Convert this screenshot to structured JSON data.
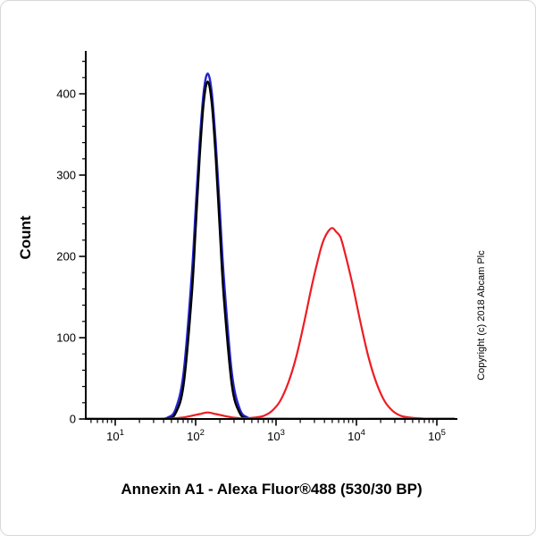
{
  "figure": {
    "title": "Annexin A1 - Alexa Fluor®488 (530/30 BP)",
    "y_axis_label": "Count",
    "copyright": "Copyright (c) 2018 Abcam Plc"
  },
  "chart_data": {
    "type": "line",
    "title": "Annexin A1 - Alexa Fluor®488 (530/30 BP)",
    "xlabel": "Annexin A1 - Alexa Fluor®488 (530/30 BP)",
    "ylabel": "Count",
    "x_scale": "log10",
    "x_ticks_exponents": [
      1,
      2,
      3,
      4,
      5
    ],
    "x_range_log10": [
      0.64,
      5.22
    ],
    "ylim": [
      0,
      450
    ],
    "y_major_ticks": [
      0,
      100,
      200,
      300,
      400
    ],
    "y_minor_tick_step": 20,
    "grid": false,
    "legend": null,
    "series": [
      {
        "name": "blue-histogram",
        "color": "#2323cc",
        "stroke_width": 2.4,
        "peak": {
          "log10x": 2.15,
          "count": 425
        },
        "points_log10x_count": [
          [
            0.64,
            0
          ],
          [
            1.4,
            0
          ],
          [
            1.55,
            0.1
          ],
          [
            1.65,
            1.7
          ],
          [
            1.75,
            12
          ],
          [
            1.85,
            57
          ],
          [
            1.95,
            175
          ],
          [
            2.0,
            258
          ],
          [
            2.05,
            340
          ],
          [
            2.1,
            402
          ],
          [
            2.15,
            425
          ],
          [
            2.2,
            402
          ],
          [
            2.25,
            340
          ],
          [
            2.3,
            258
          ],
          [
            2.35,
            175
          ],
          [
            2.45,
            57
          ],
          [
            2.55,
            12
          ],
          [
            2.65,
            1.7
          ],
          [
            2.75,
            0.1
          ],
          [
            2.9,
            0
          ],
          [
            5.22,
            0
          ]
        ]
      },
      {
        "name": "black-histogram",
        "color": "#000000",
        "stroke_width": 2.4,
        "peak": {
          "log10x": 2.15,
          "count": 415
        },
        "points_log10x_count": [
          [
            0.64,
            0
          ],
          [
            1.45,
            0
          ],
          [
            1.65,
            0.7
          ],
          [
            1.75,
            7
          ],
          [
            1.85,
            42
          ],
          [
            1.95,
            150
          ],
          [
            2.0,
            234
          ],
          [
            2.05,
            322
          ],
          [
            2.1,
            389
          ],
          [
            2.15,
            415
          ],
          [
            2.2,
            389
          ],
          [
            2.25,
            322
          ],
          [
            2.3,
            234
          ],
          [
            2.35,
            150
          ],
          [
            2.45,
            42
          ],
          [
            2.55,
            7
          ],
          [
            2.65,
            0.7
          ],
          [
            2.8,
            0
          ],
          [
            5.22,
            0
          ]
        ]
      },
      {
        "name": "red-histogram",
        "color": "#ee1c23",
        "stroke_width": 2.2,
        "peak": {
          "log10x": 3.7,
          "count": 235
        },
        "points_log10x_count": [
          [
            0.64,
            0
          ],
          [
            1.55,
            0
          ],
          [
            1.75,
            1
          ],
          [
            1.85,
            2
          ],
          [
            1.95,
            4
          ],
          [
            2.05,
            6
          ],
          [
            2.15,
            8
          ],
          [
            2.25,
            6
          ],
          [
            2.35,
            4
          ],
          [
            2.45,
            2
          ],
          [
            2.55,
            1
          ],
          [
            2.65,
            1
          ],
          [
            2.75,
            2
          ],
          [
            2.85,
            4
          ],
          [
            2.95,
            10
          ],
          [
            3.05,
            22
          ],
          [
            3.15,
            44
          ],
          [
            3.25,
            76
          ],
          [
            3.35,
            119
          ],
          [
            3.45,
            166
          ],
          [
            3.55,
            207
          ],
          [
            3.6,
            222
          ],
          [
            3.65,
            231
          ],
          [
            3.7,
            235
          ],
          [
            3.75,
            230
          ],
          [
            3.8,
            224
          ],
          [
            3.85,
            207
          ],
          [
            3.95,
            166
          ],
          [
            4.05,
            119
          ],
          [
            4.15,
            76
          ],
          [
            4.25,
            44
          ],
          [
            4.35,
            22
          ],
          [
            4.45,
            10
          ],
          [
            4.55,
            4
          ],
          [
            4.65,
            2
          ],
          [
            4.75,
            1
          ],
          [
            4.95,
            0
          ],
          [
            5.22,
            0
          ]
        ]
      }
    ]
  }
}
